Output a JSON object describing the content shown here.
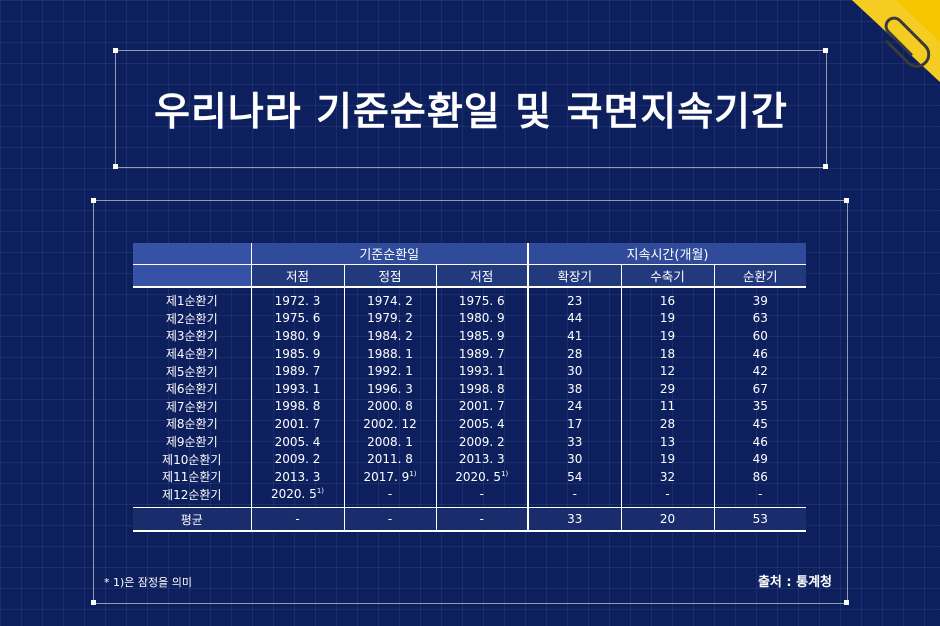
{
  "title": "우리나라 기준순환일 및 국면지속기간",
  "table": {
    "group_headers": [
      "기준순환일",
      "지속시간(개월)"
    ],
    "sub_headers": [
      "저점",
      "정점",
      "저점",
      "확장기",
      "수축기",
      "순환기"
    ],
    "rows": [
      {
        "label": "제1순환기",
        "c1": "1972. 3",
        "c2": "1974. 2",
        "c3": "1975. 6",
        "c4": "23",
        "c5": "16",
        "c6": "39",
        "s1": "",
        "s2": "",
        "s3": ""
      },
      {
        "label": "제2순환기",
        "c1": "1975. 6",
        "c2": "1979. 2",
        "c3": "1980. 9",
        "c4": "44",
        "c5": "19",
        "c6": "63",
        "s1": "",
        "s2": "",
        "s3": ""
      },
      {
        "label": "제3순환기",
        "c1": "1980. 9",
        "c2": "1984. 2",
        "c3": "1985. 9",
        "c4": "41",
        "c5": "19",
        "c6": "60",
        "s1": "",
        "s2": "",
        "s3": ""
      },
      {
        "label": "제4순환기",
        "c1": "1985. 9",
        "c2": "1988. 1",
        "c3": "1989. 7",
        "c4": "28",
        "c5": "18",
        "c6": "46",
        "s1": "",
        "s2": "",
        "s3": ""
      },
      {
        "label": "제5순환기",
        "c1": "1989. 7",
        "c2": "1992. 1",
        "c3": "1993. 1",
        "c4": "30",
        "c5": "12",
        "c6": "42",
        "s1": "",
        "s2": "",
        "s3": ""
      },
      {
        "label": "제6순환기",
        "c1": "1993. 1",
        "c2": "1996. 3",
        "c3": "1998. 8",
        "c4": "38",
        "c5": "29",
        "c6": "67",
        "s1": "",
        "s2": "",
        "s3": ""
      },
      {
        "label": "제7순환기",
        "c1": "1998. 8",
        "c2": "2000. 8",
        "c3": "2001. 7",
        "c4": "24",
        "c5": "11",
        "c6": "35",
        "s1": "",
        "s2": "",
        "s3": ""
      },
      {
        "label": "제8순환기",
        "c1": "2001. 7",
        "c2": "2002. 12",
        "c3": "2005. 4",
        "c4": "17",
        "c5": "28",
        "c6": "45",
        "s1": "",
        "s2": "",
        "s3": ""
      },
      {
        "label": "제9순환기",
        "c1": "2005. 4",
        "c2": "2008. 1",
        "c3": "2009. 2",
        "c4": "33",
        "c5": "13",
        "c6": "46",
        "s1": "",
        "s2": "",
        "s3": ""
      },
      {
        "label": "제10순환기",
        "c1": "2009. 2",
        "c2": "2011. 8",
        "c3": "2013. 3",
        "c4": "30",
        "c5": "19",
        "c6": "49",
        "s1": "",
        "s2": "",
        "s3": ""
      },
      {
        "label": "제11순환기",
        "c1": "2013. 3",
        "c2": "2017. 9",
        "c3": "2020. 5",
        "c4": "54",
        "c5": "32",
        "c6": "86",
        "s1": "",
        "s2": "1)",
        "s3": "1)"
      },
      {
        "label": "제12순환기",
        "c1": "2020. 5",
        "c2": "-",
        "c3": "-",
        "c4": "-",
        "c5": "-",
        "c6": "-",
        "s1": "1)",
        "s2": "",
        "s3": ""
      }
    ],
    "average": {
      "label": "평균",
      "c1": "-",
      "c2": "-",
      "c3": "-",
      "c4": "33",
      "c5": "20",
      "c6": "53"
    }
  },
  "footnote": "* 1)은 잠정을 의미",
  "source": "출처 : 통계청",
  "colors": {
    "background": "#0d1f5c",
    "header": "#2f4b9a",
    "badge": "#f7c600"
  },
  "icons": {
    "corner": "paperclip-icon"
  }
}
